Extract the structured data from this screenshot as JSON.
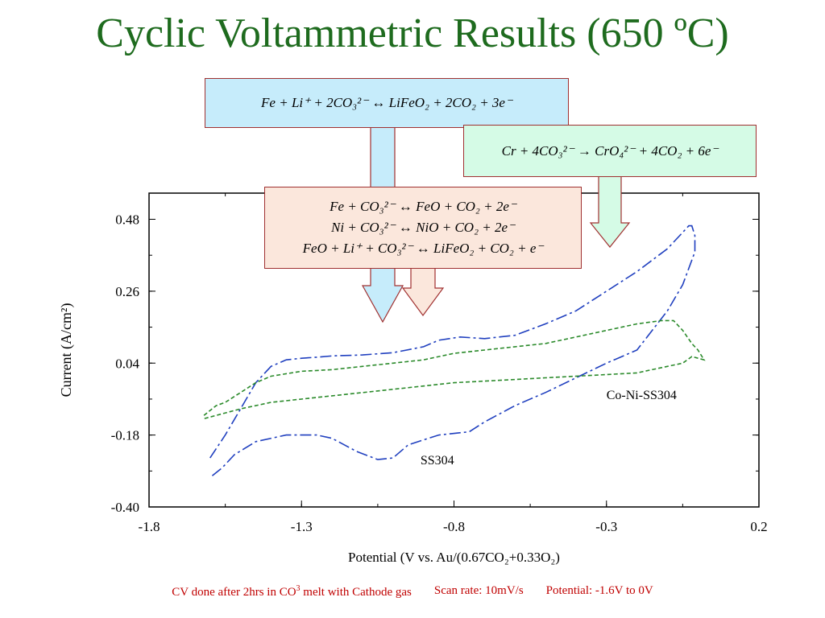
{
  "slide": {
    "title": "Cyclic Voltammetric Results (650 ºC)"
  },
  "equations": {
    "top_box": {
      "color": "#c6ecfb",
      "line": "Fe + Li⁺ + 2CO₃²⁻ ↔ LiFeO₂ + 2CO₂ + 3e⁻"
    },
    "right_box": {
      "color": "#d5fbe6",
      "line": "Cr + 4CO₃²⁻ → CrO₄²⁻ + 4CO₂ + 6e⁻"
    },
    "middle_box": {
      "color": "#fbe7dc",
      "lines": [
        "Fe + CO₃²⁻ ↔ FeO + CO₂ + 2e⁻",
        "Ni + CO₃²⁻ ↔ NiO + CO₂ + 2e⁻",
        "FeO + Li⁺ + CO₃²⁻ ↔ LiFeO₂ + CO₂ + e⁻"
      ]
    }
  },
  "chart_data": {
    "type": "line",
    "title": "",
    "xlabel": "Potential (V vs. Au/(0.67CO₂+0.33O₂)",
    "ylabel": "Current (A/cm²)",
    "xlim": [
      -1.8,
      0.2
    ],
    "ylim": [
      -0.4,
      0.56
    ],
    "xticks": [
      "-1.8",
      "-1.3",
      "-0.8",
      "-0.3",
      "0.2"
    ],
    "yticks": [
      "-0.40",
      "-0.18",
      "0.04",
      "0.26",
      "0.48"
    ],
    "grid": false,
    "series": [
      {
        "name": "SS304",
        "color": "#1f3fbf",
        "dash": "long-dash",
        "label_at": [
          -0.91,
          -0.27
        ],
        "points": [
          [
            -1.6,
            -0.25
          ],
          [
            -1.55,
            -0.18
          ],
          [
            -1.5,
            -0.1
          ],
          [
            -1.45,
            -0.02
          ],
          [
            -1.4,
            0.03
          ],
          [
            -1.35,
            0.05
          ],
          [
            -1.3,
            0.055
          ],
          [
            -1.25,
            0.058
          ],
          [
            -1.2,
            0.062
          ],
          [
            -1.1,
            0.065
          ],
          [
            -1.0,
            0.072
          ],
          [
            -0.9,
            0.09
          ],
          [
            -0.85,
            0.11
          ],
          [
            -0.78,
            0.12
          ],
          [
            -0.7,
            0.115
          ],
          [
            -0.6,
            0.125
          ],
          [
            -0.5,
            0.16
          ],
          [
            -0.4,
            0.2
          ],
          [
            -0.3,
            0.26
          ],
          [
            -0.2,
            0.32
          ],
          [
            -0.1,
            0.39
          ],
          [
            -0.05,
            0.44
          ],
          [
            -0.03,
            0.46
          ],
          [
            -0.02,
            0.46
          ],
          [
            -0.01,
            0.43
          ],
          [
            -0.01,
            0.38
          ],
          [
            -0.05,
            0.28
          ],
          [
            -0.1,
            0.2
          ],
          [
            -0.2,
            0.08
          ],
          [
            -0.3,
            0.04
          ],
          [
            -0.5,
            -0.05
          ],
          [
            -0.6,
            -0.09
          ],
          [
            -0.7,
            -0.14
          ],
          [
            -0.75,
            -0.17
          ],
          [
            -0.85,
            -0.18
          ],
          [
            -0.95,
            -0.21
          ],
          [
            -1.0,
            -0.25
          ],
          [
            -1.05,
            -0.255
          ],
          [
            -1.12,
            -0.23
          ],
          [
            -1.2,
            -0.19
          ],
          [
            -1.25,
            -0.18
          ],
          [
            -1.35,
            -0.18
          ],
          [
            -1.45,
            -0.2
          ],
          [
            -1.52,
            -0.24
          ],
          [
            -1.56,
            -0.28
          ],
          [
            -1.6,
            -0.31
          ]
        ]
      },
      {
        "name": "Co-Ni-SS304",
        "color": "#2a8a2a",
        "dash": "short-dash",
        "label_at": [
          -0.3,
          -0.07
        ],
        "points": [
          [
            -1.62,
            -0.12
          ],
          [
            -1.58,
            -0.09
          ],
          [
            -1.55,
            -0.08
          ],
          [
            -1.5,
            -0.05
          ],
          [
            -1.45,
            -0.02
          ],
          [
            -1.4,
            0.0
          ],
          [
            -1.3,
            0.015
          ],
          [
            -1.2,
            0.02
          ],
          [
            -1.1,
            0.03
          ],
          [
            -1.0,
            0.04
          ],
          [
            -0.9,
            0.05
          ],
          [
            -0.8,
            0.07
          ],
          [
            -0.7,
            0.08
          ],
          [
            -0.6,
            0.09
          ],
          [
            -0.5,
            0.1
          ],
          [
            -0.4,
            0.12
          ],
          [
            -0.3,
            0.14
          ],
          [
            -0.2,
            0.16
          ],
          [
            -0.12,
            0.17
          ],
          [
            -0.08,
            0.17
          ],
          [
            -0.05,
            0.14
          ],
          [
            -0.02,
            0.1
          ],
          [
            0.0,
            0.08
          ],
          [
            0.02,
            0.05
          ],
          [
            -0.02,
            0.06
          ],
          [
            -0.05,
            0.04
          ],
          [
            -0.1,
            0.03
          ],
          [
            -0.2,
            0.01
          ],
          [
            -0.3,
            0.005
          ],
          [
            -0.5,
            -0.005
          ],
          [
            -0.6,
            -0.01
          ],
          [
            -0.8,
            -0.02
          ],
          [
            -1.0,
            -0.04
          ],
          [
            -1.2,
            -0.06
          ],
          [
            -1.4,
            -0.08
          ],
          [
            -1.5,
            -0.1
          ],
          [
            -1.62,
            -0.13
          ]
        ]
      }
    ]
  },
  "footer": {
    "note_prefix": "CV done after 2hrs in CO",
    "note_sup": "3",
    "note_suffix": " melt with Cathode gas",
    "scan_rate": "Scan rate: 10mV/s",
    "potential_range": "Potential: -1.6V to 0V"
  }
}
